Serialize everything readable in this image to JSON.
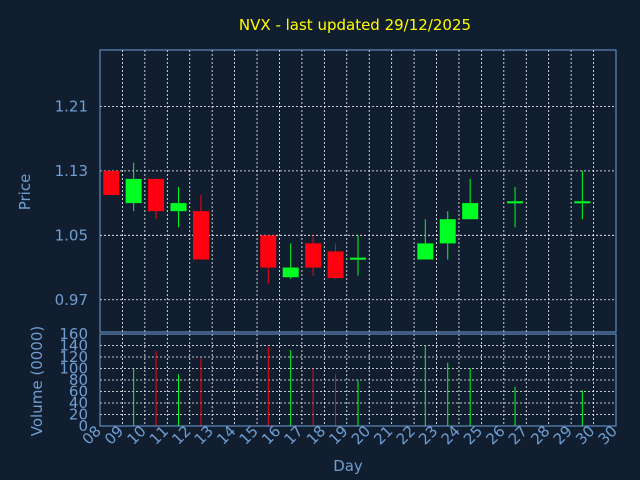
{
  "colors": {
    "background": "#111e30",
    "axis_text": "#6f9ed2",
    "title": "#ffff00",
    "grid": "#ffffff",
    "up": "#00ff22",
    "down": "#ff0010",
    "frame": "#6f9ed2"
  },
  "chart_data": [
    {
      "type": "candlestick",
      "title": "NVX - last updated 29/12/2025",
      "ylabel": "Price",
      "ylim": [
        0.93,
        1.28
      ],
      "yticks": [
        "1.21",
        "1.13",
        "1.05",
        "0.97"
      ],
      "ytick_values": [
        1.21,
        1.13,
        1.05,
        0.97
      ],
      "grid": true,
      "candles": [
        {
          "day": "08",
          "open": 1.13,
          "high": 1.13,
          "low": 1.1,
          "close": 1.1,
          "direction": "down"
        },
        {
          "day": "09",
          "open": 1.09,
          "high": 1.14,
          "low": 1.08,
          "close": 1.12,
          "direction": "up"
        },
        {
          "day": "10",
          "open": 1.12,
          "high": 1.12,
          "low": 1.07,
          "close": 1.08,
          "direction": "down"
        },
        {
          "day": "11",
          "open": 1.08,
          "high": 1.11,
          "low": 1.06,
          "close": 1.09,
          "direction": "up"
        },
        {
          "day": "12",
          "open": 1.08,
          "high": 1.1,
          "low": 1.02,
          "close": 1.02,
          "direction": "down"
        },
        {
          "day": "15",
          "open": 1.05,
          "high": 1.05,
          "low": 0.99,
          "close": 1.01,
          "direction": "down"
        },
        {
          "day": "16",
          "open": 0.998,
          "high": 1.04,
          "low": 0.996,
          "close": 1.01,
          "direction": "up"
        },
        {
          "day": "17",
          "open": 1.04,
          "high": 1.05,
          "low": 1.0,
          "close": 1.01,
          "direction": "down"
        },
        {
          "day": "18",
          "open": 1.03,
          "high": 1.04,
          "low": 0.996,
          "close": 0.997,
          "direction": "down"
        },
        {
          "day": "19",
          "open": 1.02,
          "high": 1.05,
          "low": 1.0,
          "close": 1.021,
          "direction": "up"
        },
        {
          "day": "22",
          "open": 1.02,
          "high": 1.07,
          "low": 1.02,
          "close": 1.04,
          "direction": "up"
        },
        {
          "day": "23",
          "open": 1.04,
          "high": 1.08,
          "low": 1.02,
          "close": 1.07,
          "direction": "up"
        },
        {
          "day": "24",
          "open": 1.07,
          "high": 1.12,
          "low": 1.07,
          "close": 1.09,
          "direction": "up"
        },
        {
          "day": "26",
          "open": 1.09,
          "high": 1.11,
          "low": 1.06,
          "close": 1.091,
          "direction": "up"
        },
        {
          "day": "29",
          "open": 1.09,
          "high": 1.13,
          "low": 1.07,
          "close": 1.091,
          "direction": "up"
        }
      ]
    },
    {
      "type": "bar",
      "ylabel": "Volume (0000)",
      "xlabel": "Day",
      "ylim": [
        0,
        160
      ],
      "yticks": [
        "160",
        "140",
        "120",
        "100",
        "80",
        "60",
        "40",
        "20",
        "0"
      ],
      "ytick_values": [
        160,
        140,
        120,
        100,
        80,
        60,
        40,
        20,
        0
      ],
      "categories": [
        "08",
        "09",
        "10",
        "11",
        "12",
        "13",
        "14",
        "15",
        "16",
        "17",
        "18",
        "19",
        "20",
        "21",
        "22",
        "23",
        "24",
        "25",
        "26",
        "27",
        "28",
        "29",
        "30"
      ],
      "volumes": [
        {
          "day": "09",
          "value": 100,
          "direction": "up"
        },
        {
          "day": "10",
          "value": 130,
          "direction": "down"
        },
        {
          "day": "11",
          "value": 90,
          "direction": "up"
        },
        {
          "day": "12",
          "value": 118,
          "direction": "down"
        },
        {
          "day": "15",
          "value": 138,
          "direction": "down"
        },
        {
          "day": "16",
          "value": 132,
          "direction": "up"
        },
        {
          "day": "17",
          "value": 100,
          "direction": "down"
        },
        {
          "day": "18",
          "value": 90,
          "direction": "down"
        },
        {
          "day": "19",
          "value": 80,
          "direction": "up"
        },
        {
          "day": "22",
          "value": 140,
          "direction": "up"
        },
        {
          "day": "23",
          "value": 110,
          "direction": "up"
        },
        {
          "day": "24",
          "value": 100,
          "direction": "up"
        },
        {
          "day": "26",
          "value": 68,
          "direction": "up"
        },
        {
          "day": "29",
          "value": 62,
          "direction": "up"
        }
      ]
    }
  ]
}
